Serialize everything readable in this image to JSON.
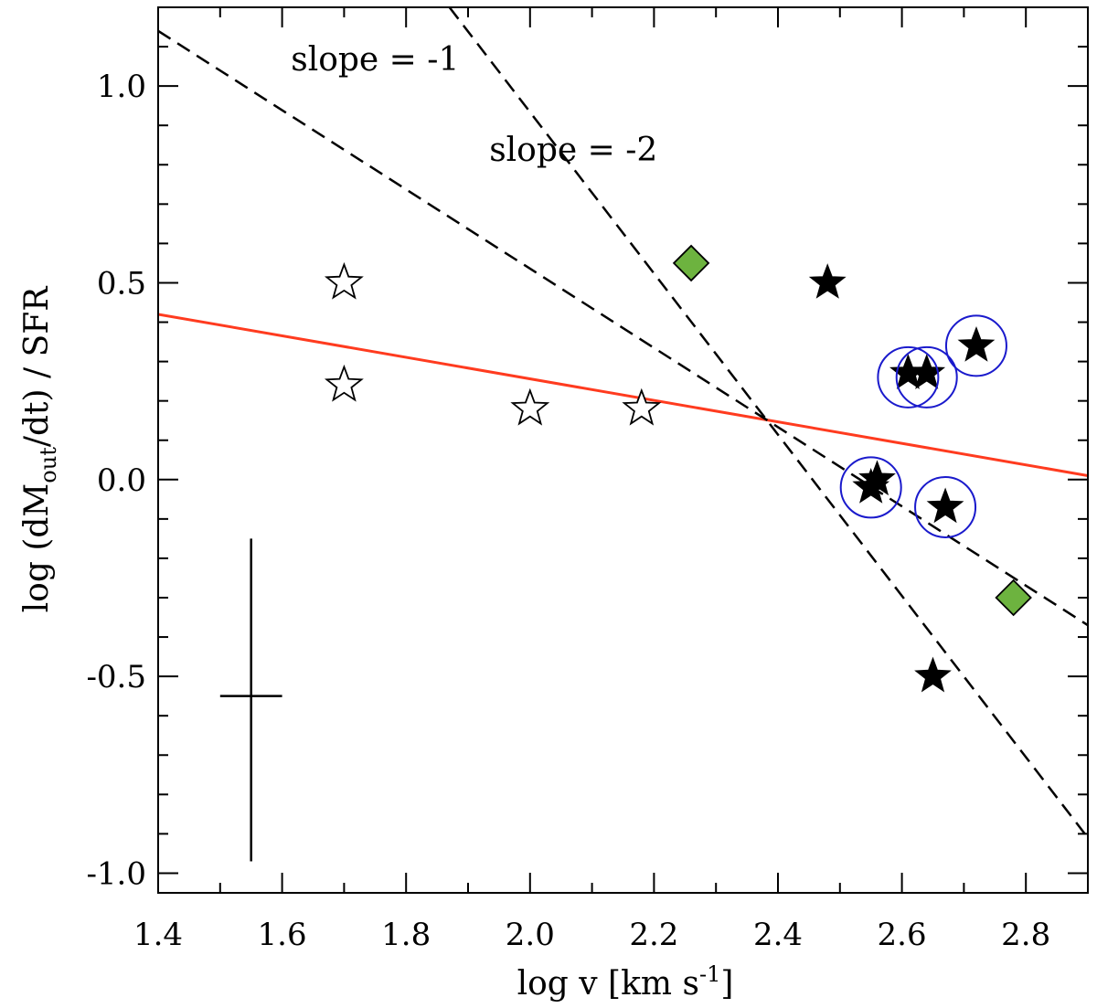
{
  "chart_data": {
    "type": "scatter",
    "title": "",
    "xlabel": {
      "prefix": "log v [km s",
      "sup": "-1",
      "suffix": "]"
    },
    "ylabel": {
      "prefix": "log (dM",
      "sub": "out",
      "suffix": "/dt) / SFR"
    },
    "xlim": [
      1.4,
      2.9
    ],
    "ylim": [
      -1.05,
      1.2
    ],
    "xticks": [
      1.4,
      1.6,
      1.8,
      2.0,
      2.2,
      2.4,
      2.6,
      2.8
    ],
    "xtick_labels": [
      "1.4",
      "1.6",
      "1.8",
      "2.0",
      "2.2",
      "2.4",
      "2.6",
      "2.8"
    ],
    "yticks": [
      -1.0,
      -0.5,
      0.0,
      0.5,
      1.0
    ],
    "ytick_labels": [
      "-1.0",
      "-0.5",
      "0.0",
      "0.5",
      "1.0"
    ],
    "grid": false,
    "series": [
      {
        "name": "open stars",
        "marker": "open-star",
        "color": "#ffffff",
        "points": [
          {
            "x": 1.7,
            "y": 0.5
          },
          {
            "x": 1.7,
            "y": 0.24
          },
          {
            "x": 2.0,
            "y": 0.18
          },
          {
            "x": 2.18,
            "y": 0.18
          }
        ]
      },
      {
        "name": "filled stars",
        "marker": "filled-star",
        "color": "#000000",
        "points": [
          {
            "x": 2.48,
            "y": 0.5
          },
          {
            "x": 2.61,
            "y": 0.27
          },
          {
            "x": 2.64,
            "y": 0.27
          },
          {
            "x": 2.72,
            "y": 0.34
          },
          {
            "x": 2.55,
            "y": -0.02
          },
          {
            "x": 2.56,
            "y": 0.0
          },
          {
            "x": 2.67,
            "y": -0.07
          },
          {
            "x": 2.65,
            "y": -0.5
          }
        ]
      },
      {
        "name": "circled",
        "marker": "blue-circle",
        "color": "#1a1acc",
        "points": [
          {
            "x": 2.61,
            "y": 0.26
          },
          {
            "x": 2.64,
            "y": 0.26
          },
          {
            "x": 2.72,
            "y": 0.34
          },
          {
            "x": 2.55,
            "y": -0.02
          },
          {
            "x": 2.67,
            "y": -0.07
          }
        ]
      },
      {
        "name": "diamonds",
        "marker": "diamond",
        "color": "#6db33f",
        "points": [
          {
            "x": 2.26,
            "y": 0.55
          },
          {
            "x": 2.78,
            "y": -0.3
          }
        ]
      }
    ],
    "lines": [
      {
        "name": "fit",
        "style": "solid",
        "color": "#ff3b1f",
        "x": [
          1.4,
          2.9
        ],
        "y": [
          0.42,
          0.01
        ]
      },
      {
        "name": "slope = -1",
        "style": "dashed",
        "color": "#000000",
        "x": [
          1.4,
          2.9
        ],
        "y": [
          1.14,
          -0.37
        ]
      },
      {
        "name": "slope = -2",
        "style": "dashed",
        "color": "#000000",
        "x": [
          1.87,
          2.9
        ],
        "y": [
          1.2,
          -0.91
        ]
      }
    ],
    "annotations": [
      {
        "text": "slope = -1",
        "x": 1.75,
        "y": 1.04
      },
      {
        "text": "slope = -2",
        "x": 2.07,
        "y": 0.81
      }
    ],
    "error_bar": {
      "x": 1.55,
      "y": -0.55,
      "xerr": 0.05,
      "yerr_low": 0.42,
      "yerr_high": 0.4
    }
  }
}
